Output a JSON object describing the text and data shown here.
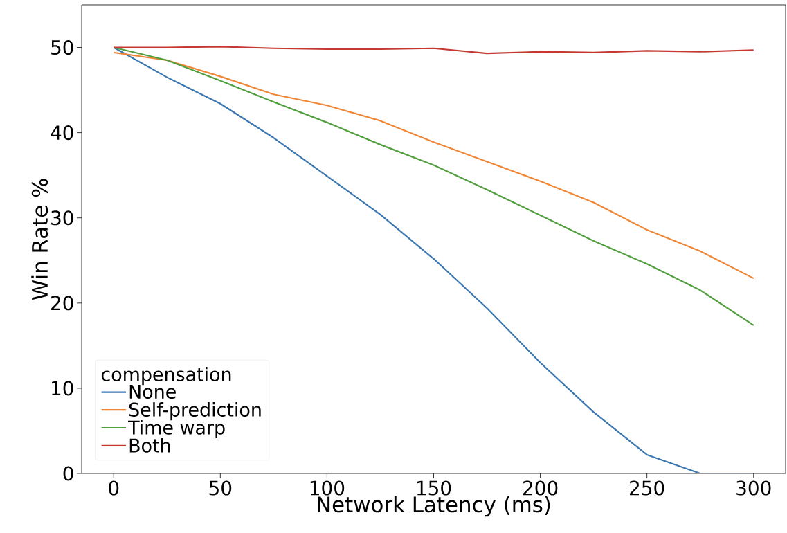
{
  "chart_data": {
    "type": "line",
    "xlabel": "Network Latency (ms)",
    "ylabel": "Win Rate %",
    "legend_title": "compensation",
    "x": [
      0,
      25,
      50,
      75,
      100,
      125,
      150,
      175,
      200,
      225,
      250,
      275,
      300
    ],
    "series": [
      {
        "name": "None",
        "color": "#3a76af",
        "values": [
          50.0,
          46.5,
          43.4,
          39.4,
          34.9,
          30.4,
          25.2,
          19.4,
          13.0,
          7.2,
          2.2,
          0,
          0
        ]
      },
      {
        "name": "Self-prediction",
        "color": "#ef8636",
        "values": [
          49.4,
          48.5,
          46.6,
          44.5,
          43.2,
          41.4,
          38.9,
          36.6,
          34.3,
          31.8,
          28.6,
          26.1,
          22.9
        ]
      },
      {
        "name": "Time warp",
        "color": "#519e3e",
        "values": [
          50.0,
          48.5,
          46.1,
          43.6,
          41.2,
          38.6,
          36.2,
          33.3,
          30.3,
          27.3,
          24.6,
          21.5,
          17.4
        ]
      },
      {
        "name": "Both",
        "color": "#c53932",
        "values": [
          50.0,
          50.0,
          50.1,
          49.9,
          49.8,
          49.8,
          49.9,
          49.3,
          49.5,
          49.4,
          49.6,
          49.5,
          49.7
        ]
      }
    ],
    "xlim": [
      -15,
      315
    ],
    "ylim": [
      0,
      55
    ],
    "xticks": [
      0,
      50,
      100,
      150,
      200,
      250,
      300
    ],
    "yticks": [
      0,
      10,
      20,
      30,
      40,
      50
    ],
    "legend": "bottom left",
    "marker": "none",
    "line_style": "solid"
  }
}
